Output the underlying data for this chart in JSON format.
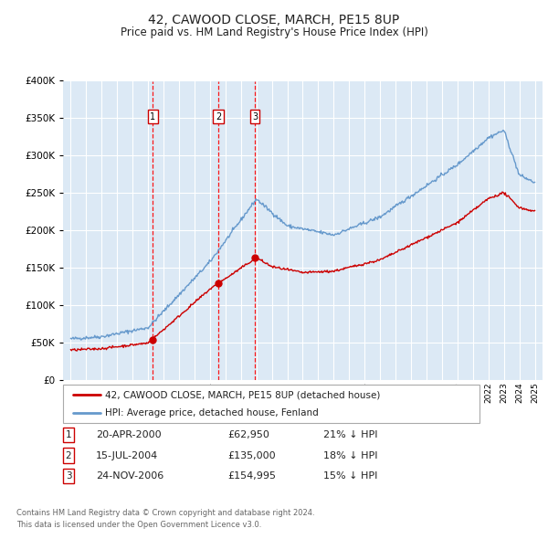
{
  "title": "42, CAWOOD CLOSE, MARCH, PE15 8UP",
  "subtitle": "Price paid vs. HM Land Registry's House Price Index (HPI)",
  "red_label": "42, CAWOOD CLOSE, MARCH, PE15 8UP (detached house)",
  "blue_label": "HPI: Average price, detached house, Fenland",
  "footer1": "Contains HM Land Registry data © Crown copyright and database right 2024.",
  "footer2": "This data is licensed under the Open Government Licence v3.0.",
  "sales": [
    {
      "num": 1,
      "date": "20-APR-2000",
      "price": "£62,950",
      "pct": "21% ↓ HPI",
      "year": 2000.3,
      "value": 62950
    },
    {
      "num": 2,
      "date": "15-JUL-2004",
      "price": "£135,000",
      "pct": "18% ↓ HPI",
      "year": 2004.54,
      "value": 135000
    },
    {
      "num": 3,
      "date": "24-NOV-2006",
      "price": "£154,995",
      "pct": "15% ↓ HPI",
      "year": 2006.9,
      "value": 154995
    }
  ],
  "ylim": [
    0,
    400000
  ],
  "xlim_start": 1994.5,
  "xlim_end": 2025.5,
  "bg_color": "#dce9f5",
  "grid_color": "#ffffff",
  "red_color": "#cc0000",
  "blue_color": "#6699cc"
}
